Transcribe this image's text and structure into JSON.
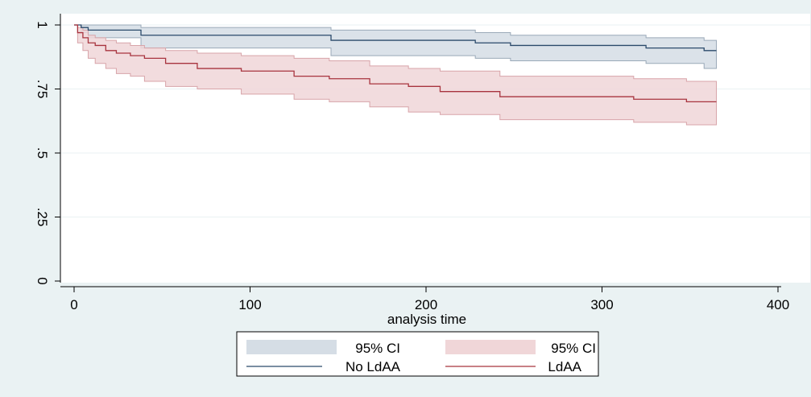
{
  "chart_data": {
    "type": "line",
    "title": "",
    "xlabel": "analysis time",
    "ylabel": "",
    "xlim": [
      0,
      400
    ],
    "ylim": [
      0,
      1
    ],
    "xticks": [
      0,
      100,
      200,
      300,
      400
    ],
    "xtick_labels": [
      "0",
      "100",
      "200",
      "300",
      "400"
    ],
    "yticks": [
      0,
      0.25,
      0.5,
      0.75,
      1
    ],
    "ytick_labels": [
      "0",
      ".25",
      ".5",
      ".75",
      "1"
    ],
    "grid": true,
    "legend": {
      "placement": "bottom",
      "entries": [
        "95% CI",
        "95% CI",
        "No LdAA",
        "LdAA"
      ]
    },
    "colors": {
      "no_ldaa_line": "#2b4a6b",
      "no_ldaa_band": "#d5dde5",
      "ldaa_line": "#a8343f",
      "ldaa_band": "#f0d6d8"
    },
    "series": [
      {
        "name": "No LdAA",
        "x": [
          0,
          4,
          8,
          38,
          146,
          228,
          248,
          325,
          358,
          365
        ],
        "y": [
          1.0,
          0.99,
          0.98,
          0.96,
          0.94,
          0.93,
          0.92,
          0.91,
          0.9,
          0.9
        ],
        "ci_lower": [
          1.0,
          0.97,
          0.95,
          0.91,
          0.88,
          0.87,
          0.86,
          0.85,
          0.83,
          0.83
        ],
        "ci_upper": [
          1.0,
          1.0,
          1.0,
          0.99,
          0.98,
          0.97,
          0.96,
          0.95,
          0.94,
          0.94
        ]
      },
      {
        "name": "LdAA",
        "x": [
          0,
          2,
          5,
          8,
          12,
          18,
          24,
          32,
          40,
          52,
          70,
          95,
          125,
          145,
          168,
          190,
          208,
          242,
          318,
          348,
          365
        ],
        "y": [
          1.0,
          0.97,
          0.95,
          0.93,
          0.92,
          0.9,
          0.89,
          0.88,
          0.87,
          0.85,
          0.83,
          0.82,
          0.8,
          0.79,
          0.77,
          0.76,
          0.74,
          0.72,
          0.71,
          0.7,
          0.7
        ],
        "ci_lower": [
          1.0,
          0.93,
          0.9,
          0.87,
          0.85,
          0.83,
          0.81,
          0.8,
          0.78,
          0.76,
          0.75,
          0.73,
          0.71,
          0.7,
          0.68,
          0.66,
          0.65,
          0.63,
          0.62,
          0.61,
          0.61
        ],
        "ci_upper": [
          1.0,
          0.99,
          0.98,
          0.96,
          0.95,
          0.94,
          0.93,
          0.92,
          0.91,
          0.9,
          0.89,
          0.88,
          0.87,
          0.86,
          0.84,
          0.83,
          0.82,
          0.8,
          0.79,
          0.78,
          0.78
        ]
      }
    ]
  }
}
